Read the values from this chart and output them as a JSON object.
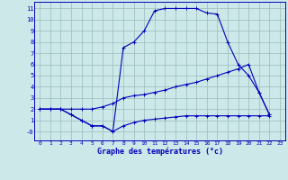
{
  "xlabel": "Graphe des températures (°c)",
  "bg_color": "#cce8e8",
  "line_color": "#0000bb",
  "grid_color": "#99bbbb",
  "xlim": [
    -0.5,
    23.5
  ],
  "ylim": [
    -0.8,
    11.6
  ],
  "xticks": [
    0,
    1,
    2,
    3,
    4,
    5,
    6,
    7,
    8,
    9,
    10,
    11,
    12,
    13,
    14,
    15,
    16,
    17,
    18,
    19,
    20,
    21,
    22,
    23
  ],
  "yticks": [
    0,
    1,
    2,
    3,
    4,
    5,
    6,
    7,
    8,
    9,
    10,
    11
  ],
  "ytick_labels": [
    "-0",
    "1",
    "2",
    "3",
    "4",
    "5",
    "6",
    "7",
    "8",
    "9",
    "10",
    "11"
  ],
  "line1_x": [
    0,
    1,
    2,
    3,
    4,
    5,
    6,
    7,
    8,
    9,
    10,
    11,
    12,
    13,
    14,
    15,
    16,
    17,
    18,
    19,
    20,
    21,
    22
  ],
  "line1_y": [
    2,
    2,
    2,
    1.5,
    1,
    0.5,
    0.5,
    0,
    7.5,
    8.0,
    9.0,
    10.8,
    11.0,
    11.0,
    11.0,
    11.0,
    10.6,
    10.5,
    8.0,
    6.0,
    5.0,
    3.5,
    1.5
  ],
  "line2_x": [
    0,
    1,
    2,
    3,
    4,
    5,
    6,
    7,
    8,
    9,
    10,
    11,
    12,
    13,
    14,
    15,
    16,
    17,
    18,
    19,
    20,
    21,
    22
  ],
  "line2_y": [
    2,
    2,
    2,
    2.0,
    2.0,
    2.0,
    2.2,
    2.5,
    3.0,
    3.2,
    3.3,
    3.5,
    3.7,
    4.0,
    4.2,
    4.4,
    4.7,
    5.0,
    5.3,
    5.6,
    6.0,
    3.5,
    1.5
  ],
  "line3_x": [
    0,
    1,
    2,
    3,
    4,
    5,
    6,
    7,
    8,
    9,
    10,
    11,
    12,
    13,
    14,
    15,
    16,
    17,
    18,
    19,
    20,
    21,
    22
  ],
  "line3_y": [
    2,
    2,
    2,
    1.5,
    1.0,
    0.5,
    0.5,
    0.0,
    0.5,
    0.8,
    1.0,
    1.1,
    1.2,
    1.3,
    1.4,
    1.4,
    1.4,
    1.4,
    1.4,
    1.4,
    1.4,
    1.4,
    1.4
  ]
}
